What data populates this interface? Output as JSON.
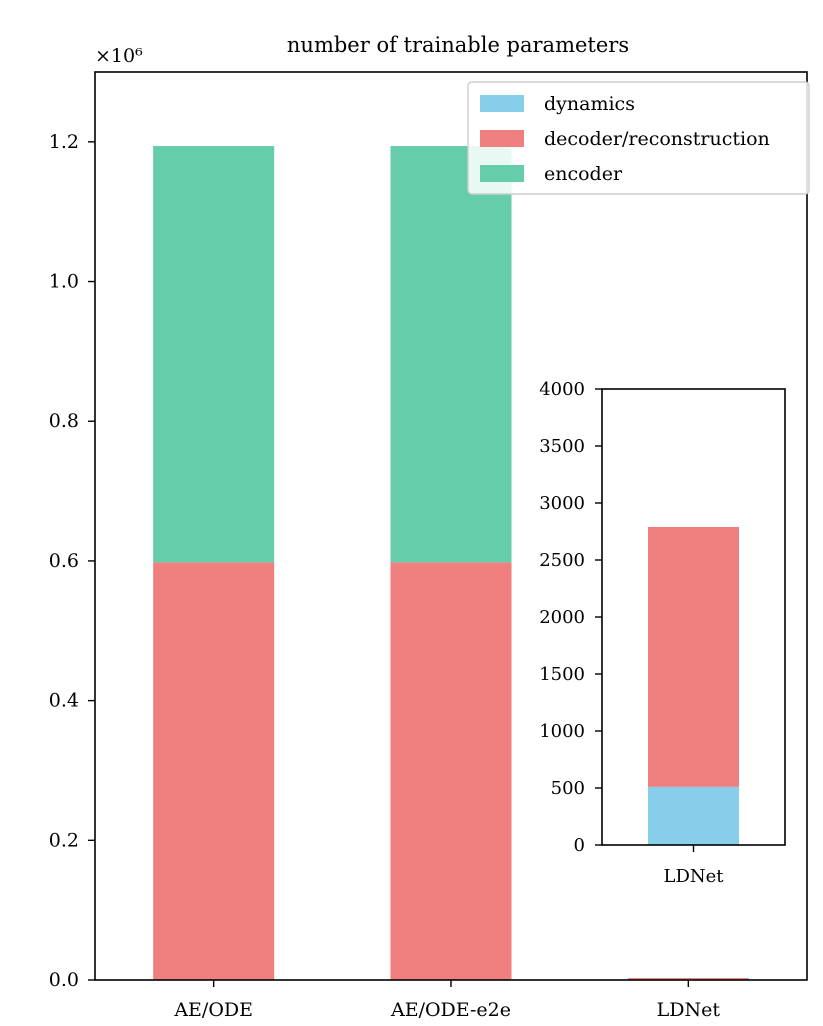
{
  "chart_data": [
    {
      "type": "bar",
      "stacked": true,
      "title": "number of trainable parameters",
      "y_offset_label": "×10⁶",
      "categories": [
        "AE/ODE",
        "AE/ODE-e2e",
        "LDNet"
      ],
      "yticks": [
        "0.0",
        "0.2",
        "0.4",
        "0.6",
        "0.8",
        "1.0",
        "1.2"
      ],
      "ylim": [
        0,
        1300000
      ],
      "series": [
        {
          "name": "dynamics",
          "color": "#87ceeb",
          "values": [
            0,
            0,
            510
          ]
        },
        {
          "name": "decoder/reconstruction",
          "color": "#f08080",
          "values": [
            598000,
            598000,
            2280
          ]
        },
        {
          "name": "encoder",
          "color": "#66cdaa",
          "values": [
            596000,
            596000,
            0
          ]
        }
      ],
      "legend": {
        "placement": "top-right",
        "order": [
          "dynamics",
          "decoder/reconstruction",
          "encoder"
        ]
      },
      "grid": false
    },
    {
      "type": "bar",
      "stacked": true,
      "inset": true,
      "categories": [
        "LDNet"
      ],
      "yticks": [
        "0",
        "500",
        "1000",
        "1500",
        "2000",
        "2500",
        "3000",
        "3500",
        "4000"
      ],
      "ylim": [
        0,
        4000
      ],
      "series": [
        {
          "name": "dynamics",
          "color": "#87ceeb",
          "values": [
            510
          ]
        },
        {
          "name": "decoder/reconstruction",
          "color": "#f08080",
          "values": [
            2280
          ]
        }
      ],
      "grid": false
    }
  ]
}
